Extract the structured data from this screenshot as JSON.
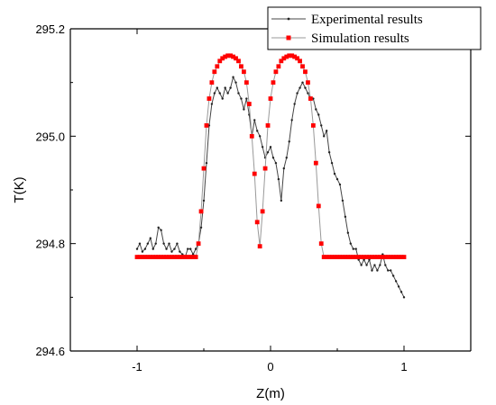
{
  "chart_data": {
    "type": "line",
    "xlabel": "Z(m)",
    "ylabel": "T(K)",
    "xlim": [
      -1.5,
      1.5
    ],
    "ylim": [
      294.6,
      295.2
    ],
    "xticks": [
      -1,
      0,
      1
    ],
    "xtick_labels": [
      "-1",
      "0",
      "1"
    ],
    "yticks": [
      294.6,
      294.8,
      295.0,
      295.2
    ],
    "ytick_labels": [
      "294.6",
      "294.8",
      "295.0",
      "295.2"
    ],
    "grid": false,
    "legend_position": "top-right",
    "series": [
      {
        "name": "Experimental results",
        "color": "#555555",
        "marker": "small-dot",
        "x": [
          -1.0,
          -0.98,
          -0.96,
          -0.94,
          -0.92,
          -0.9,
          -0.88,
          -0.86,
          -0.84,
          -0.82,
          -0.8,
          -0.78,
          -0.76,
          -0.74,
          -0.72,
          -0.7,
          -0.68,
          -0.66,
          -0.64,
          -0.62,
          -0.6,
          -0.58,
          -0.56,
          -0.54,
          -0.52,
          -0.5,
          -0.48,
          -0.46,
          -0.44,
          -0.42,
          -0.4,
          -0.38,
          -0.36,
          -0.34,
          -0.32,
          -0.3,
          -0.28,
          -0.26,
          -0.24,
          -0.22,
          -0.2,
          -0.18,
          -0.16,
          -0.14,
          -0.12,
          -0.1,
          -0.08,
          -0.06,
          -0.04,
          -0.02,
          0.0,
          0.02,
          0.04,
          0.06,
          0.08,
          0.1,
          0.12,
          0.14,
          0.16,
          0.18,
          0.2,
          0.22,
          0.24,
          0.26,
          0.28,
          0.3,
          0.32,
          0.34,
          0.36,
          0.38,
          0.4,
          0.42,
          0.44,
          0.46,
          0.48,
          0.5,
          0.52,
          0.54,
          0.56,
          0.58,
          0.6,
          0.62,
          0.64,
          0.66,
          0.68,
          0.7,
          0.72,
          0.74,
          0.76,
          0.78,
          0.8,
          0.82,
          0.84,
          0.86,
          0.88,
          0.9,
          0.92,
          0.94,
          0.96,
          0.98,
          1.0
        ],
        "values": [
          294.79,
          294.8,
          294.785,
          294.79,
          294.8,
          294.81,
          294.79,
          294.8,
          294.83,
          294.825,
          294.8,
          294.79,
          294.8,
          294.785,
          294.79,
          294.8,
          294.785,
          294.78,
          294.775,
          294.79,
          294.79,
          294.78,
          294.79,
          294.8,
          294.83,
          294.88,
          294.95,
          295.02,
          295.06,
          295.08,
          295.09,
          295.08,
          295.07,
          295.09,
          295.08,
          295.09,
          295.11,
          295.1,
          295.08,
          295.07,
          295.05,
          295.07,
          295.04,
          295.0,
          295.03,
          295.01,
          295.0,
          294.98,
          294.96,
          294.97,
          294.98,
          294.96,
          294.95,
          294.92,
          294.88,
          294.94,
          294.96,
          294.99,
          295.03,
          295.06,
          295.08,
          295.09,
          295.1,
          295.09,
          295.08,
          295.07,
          295.07,
          295.05,
          295.04,
          295.02,
          295.0,
          295.01,
          294.97,
          294.95,
          294.93,
          294.92,
          294.91,
          294.88,
          294.85,
          294.82,
          294.8,
          294.79,
          294.79,
          294.77,
          294.76,
          294.77,
          294.76,
          294.77,
          294.75,
          294.76,
          294.75,
          294.76,
          294.78,
          294.76,
          294.75,
          294.75,
          294.74,
          294.73,
          294.72,
          294.71,
          294.7
        ]
      },
      {
        "name": "Simulation results",
        "color": "#ff0000",
        "marker": "square",
        "x": [
          -1.0,
          -0.98,
          -0.96,
          -0.94,
          -0.92,
          -0.9,
          -0.88,
          -0.86,
          -0.84,
          -0.82,
          -0.8,
          -0.78,
          -0.76,
          -0.74,
          -0.72,
          -0.7,
          -0.68,
          -0.66,
          -0.64,
          -0.62,
          -0.6,
          -0.58,
          -0.56,
          -0.54,
          -0.52,
          -0.5,
          -0.48,
          -0.46,
          -0.44,
          -0.42,
          -0.4,
          -0.38,
          -0.36,
          -0.34,
          -0.32,
          -0.3,
          -0.28,
          -0.26,
          -0.24,
          -0.22,
          -0.2,
          -0.18,
          -0.16,
          -0.14,
          -0.12,
          -0.1,
          -0.08,
          -0.06,
          -0.04,
          -0.02,
          0.0,
          0.02,
          0.04,
          0.06,
          0.08,
          0.1,
          0.12,
          0.14,
          0.16,
          0.18,
          0.2,
          0.22,
          0.24,
          0.26,
          0.28,
          0.3,
          0.32,
          0.34,
          0.36,
          0.38,
          0.4,
          0.42,
          0.44,
          0.46,
          0.48,
          0.5,
          0.52,
          0.54,
          0.56,
          0.58,
          0.6,
          0.62,
          0.64,
          0.66,
          0.68,
          0.7,
          0.72,
          0.74,
          0.76,
          0.78,
          0.8,
          0.82,
          0.84,
          0.86,
          0.88,
          0.9,
          0.92,
          0.94,
          0.96,
          0.98,
          1.0
        ],
        "values": [
          294.775,
          294.775,
          294.775,
          294.775,
          294.775,
          294.775,
          294.775,
          294.775,
          294.775,
          294.775,
          294.775,
          294.775,
          294.775,
          294.775,
          294.775,
          294.775,
          294.775,
          294.775,
          294.775,
          294.775,
          294.775,
          294.775,
          294.775,
          294.8,
          294.86,
          294.94,
          295.02,
          295.07,
          295.1,
          295.12,
          295.13,
          295.14,
          295.145,
          295.148,
          295.15,
          295.15,
          295.148,
          295.145,
          295.14,
          295.13,
          295.12,
          295.1,
          295.06,
          295.0,
          294.93,
          294.84,
          294.795,
          294.86,
          294.94,
          295.02,
          295.07,
          295.1,
          295.12,
          295.13,
          295.14,
          295.145,
          295.148,
          295.15,
          295.15,
          295.148,
          295.145,
          295.14,
          295.13,
          295.12,
          295.1,
          295.07,
          295.02,
          294.95,
          294.87,
          294.8,
          294.775,
          294.775,
          294.775,
          294.775,
          294.775,
          294.775,
          294.775,
          294.775,
          294.775,
          294.775,
          294.775,
          294.775,
          294.775,
          294.775,
          294.775,
          294.775,
          294.775,
          294.775,
          294.775,
          294.775,
          294.775,
          294.775,
          294.775,
          294.775,
          294.775,
          294.775,
          294.775,
          294.775,
          294.775,
          294.775,
          294.775
        ]
      }
    ]
  }
}
